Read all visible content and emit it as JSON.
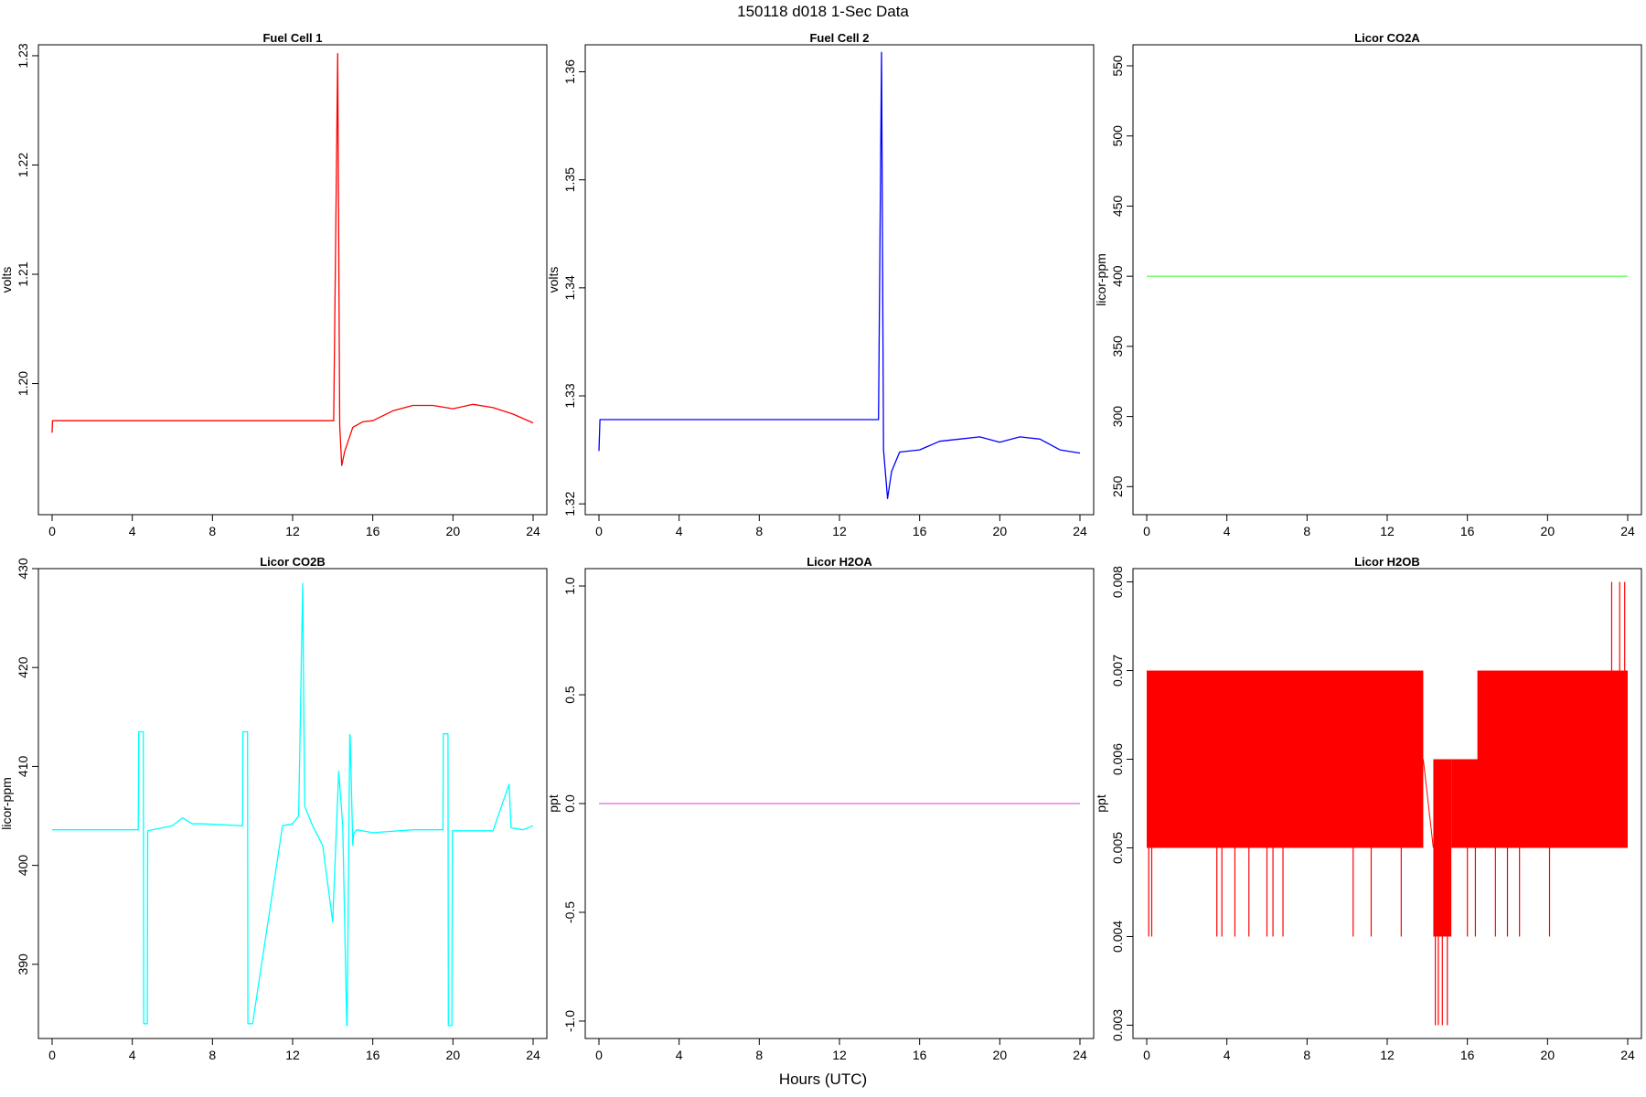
{
  "figure": {
    "title": "150118   d018   1-Sec Data",
    "xlabel": "Hours (UTC)"
  },
  "chart_data": [
    {
      "type": "line",
      "title": "Fuel Cell 1",
      "ylabel": "volts",
      "xlim": [
        0,
        24
      ],
      "ylim": [
        1.188,
        1.231
      ],
      "xticks": [
        0,
        4,
        8,
        12,
        16,
        20,
        24
      ],
      "yticks": [
        1.2,
        1.21,
        1.22,
        1.23
      ],
      "ytick_labels": [
        "1.20",
        "1.21",
        "1.22",
        "1.23"
      ],
      "series": [
        {
          "color": "#ff0000",
          "x": [
            0,
            0.02,
            13.8,
            14.05,
            14.25,
            14.35,
            14.45,
            14.6,
            15.0,
            15.5,
            16.0,
            17.0,
            18.0,
            19.0,
            20.0,
            21.0,
            22.0,
            23.0,
            24.0
          ],
          "y": [
            1.1955,
            1.1966,
            1.1966,
            1.1966,
            1.2302,
            1.1962,
            1.1925,
            1.1938,
            1.196,
            1.1965,
            1.1966,
            1.1975,
            1.198,
            1.198,
            1.1977,
            1.1981,
            1.1978,
            1.1972,
            1.1964
          ]
        }
      ]
    },
    {
      "type": "line",
      "title": "Fuel Cell 2",
      "ylabel": "volts",
      "xlim": [
        0,
        24
      ],
      "ylim": [
        1.319,
        1.3625
      ],
      "xticks": [
        0,
        4,
        8,
        12,
        16,
        20,
        24
      ],
      "yticks": [
        1.32,
        1.33,
        1.34,
        1.35,
        1.36
      ],
      "ytick_labels": [
        "1.32",
        "1.33",
        "1.34",
        "1.35",
        "1.36"
      ],
      "series": [
        {
          "color": "#0000ff",
          "x": [
            0,
            0.05,
            13.8,
            13.95,
            14.1,
            14.2,
            14.4,
            14.6,
            15.0,
            16.0,
            17.0,
            18.0,
            19.0,
            20.0,
            21.0,
            22.0,
            23.0,
            24.0
          ],
          "y": [
            1.3249,
            1.3278,
            1.3278,
            1.3278,
            1.3618,
            1.325,
            1.3205,
            1.323,
            1.3248,
            1.325,
            1.3258,
            1.326,
            1.3262,
            1.3257,
            1.3262,
            1.326,
            1.325,
            1.3247
          ]
        }
      ]
    },
    {
      "type": "line",
      "title": "Licor CO2A",
      "ylabel": "licor-ppm",
      "xlim": [
        0,
        24
      ],
      "ylim": [
        230,
        565
      ],
      "xticks": [
        0,
        4,
        8,
        12,
        16,
        20,
        24
      ],
      "yticks": [
        250,
        300,
        350,
        400,
        450,
        500,
        550
      ],
      "ytick_labels": [
        "250",
        "300",
        "350",
        "400",
        "450",
        "500",
        "550"
      ],
      "series": [
        {
          "color": "#66ff66",
          "x": [
            0,
            24
          ],
          "y": [
            400,
            400
          ]
        }
      ]
    },
    {
      "type": "line",
      "title": "Licor CO2B",
      "ylabel": "licor-ppm",
      "xlim": [
        0,
        24
      ],
      "ylim": [
        382.5,
        430
      ],
      "xticks": [
        0,
        4,
        8,
        12,
        16,
        20,
        24
      ],
      "yticks": [
        390,
        400,
        410,
        420,
        430
      ],
      "ytick_labels": [
        "390",
        "400",
        "410",
        "420",
        "430"
      ],
      "series": [
        {
          "color": "#00ffff",
          "x": [
            0,
            4.3,
            4.32,
            4.55,
            4.57,
            4.75,
            4.77,
            6.0,
            6.5,
            7.0,
            7.5,
            9.5,
            9.52,
            9.75,
            9.77,
            10.0,
            11.5,
            12.0,
            12.3,
            12.5,
            12.6,
            12.7,
            13.0,
            13.5,
            14.0,
            14.3,
            14.5,
            14.7,
            14.72,
            14.85,
            14.87,
            15.0,
            15.05,
            15.2,
            16.0,
            18.0,
            19.5,
            19.52,
            19.75,
            19.77,
            19.95,
            19.97,
            22.0,
            22.8,
            22.9,
            23.5,
            24.0
          ],
          "y": [
            403.6,
            403.6,
            413.5,
            413.5,
            384.0,
            384.0,
            403.5,
            404.0,
            404.8,
            404.2,
            404.2,
            404.0,
            413.5,
            413.5,
            384.0,
            384.0,
            404.0,
            404.2,
            405.0,
            428.5,
            406.0,
            405.5,
            404.0,
            402.0,
            394.3,
            409.5,
            404.0,
            383.8,
            383.8,
            413.2,
            413.2,
            402.0,
            403.2,
            403.6,
            403.3,
            403.6,
            403.6,
            413.3,
            413.3,
            383.8,
            383.8,
            403.5,
            403.5,
            408.2,
            403.8,
            403.6,
            404.0
          ]
        }
      ]
    },
    {
      "type": "line",
      "title": "Licor H2OA",
      "ylabel": "ppt",
      "xlim": [
        0,
        24
      ],
      "ylim": [
        -1.08,
        1.08
      ],
      "xticks": [
        0,
        4,
        8,
        12,
        16,
        20,
        24
      ],
      "yticks": [
        -1.0,
        -0.5,
        0.0,
        0.5,
        1.0
      ],
      "ytick_labels": [
        "-1.0",
        "-0.5",
        "0.0",
        "0.5",
        "1.0"
      ],
      "series": [
        {
          "color": "#dd66dd",
          "x": [
            0,
            24
          ],
          "y": [
            0,
            0
          ]
        }
      ]
    },
    {
      "type": "line",
      "title": "Licor H2OB",
      "ylabel": "ppt",
      "xlim": [
        0,
        24
      ],
      "ylim": [
        0.00285,
        0.00815
      ],
      "xticks": [
        0,
        4,
        8,
        12,
        16,
        20,
        24
      ],
      "yticks": [
        0.003,
        0.004,
        0.005,
        0.006,
        0.007,
        0.008
      ],
      "ytick_labels": [
        "0.003",
        "0.004",
        "0.005",
        "0.006",
        "0.007",
        "0.008"
      ],
      "series": [
        {
          "color": "#ff0000",
          "bands": [
            {
              "x": [
                0,
                13.8
              ],
              "y": [
                0.005,
                0.007
              ]
            },
            {
              "x": [
                14.3,
                15.2
              ],
              "y": [
                0.004,
                0.006
              ]
            },
            {
              "x": [
                15.2,
                24.0
              ],
              "y": [
                0.005,
                0.006
              ]
            },
            {
              "x": [
                16.5,
                24.0
              ],
              "y": [
                0.005,
                0.007
              ]
            }
          ],
          "spikes": [
            {
              "x": 0.1,
              "y": [
                0.004,
                0.005
              ]
            },
            {
              "x": 0.25,
              "y": [
                0.004,
                0.005
              ]
            },
            {
              "x": 3.5,
              "y": [
                0.004,
                0.005
              ]
            },
            {
              "x": 3.75,
              "y": [
                0.004,
                0.005
              ]
            },
            {
              "x": 4.4,
              "y": [
                0.004,
                0.005
              ]
            },
            {
              "x": 5.1,
              "y": [
                0.004,
                0.005
              ]
            },
            {
              "x": 6.0,
              "y": [
                0.004,
                0.005
              ]
            },
            {
              "x": 6.3,
              "y": [
                0.004,
                0.005
              ]
            },
            {
              "x": 6.8,
              "y": [
                0.004,
                0.005
              ]
            },
            {
              "x": 10.3,
              "y": [
                0.004,
                0.005
              ]
            },
            {
              "x": 11.2,
              "y": [
                0.004,
                0.005
              ]
            },
            {
              "x": 12.7,
              "y": [
                0.004,
                0.005
              ]
            },
            {
              "x": 14.4,
              "y": [
                0.003,
                0.004
              ]
            },
            {
              "x": 14.55,
              "y": [
                0.003,
                0.004
              ]
            },
            {
              "x": 14.75,
              "y": [
                0.003,
                0.004
              ]
            },
            {
              "x": 15.0,
              "y": [
                0.003,
                0.004
              ]
            },
            {
              "x": 16.0,
              "y": [
                0.004,
                0.005
              ]
            },
            {
              "x": 16.4,
              "y": [
                0.004,
                0.005
              ]
            },
            {
              "x": 17.4,
              "y": [
                0.004,
                0.005
              ]
            },
            {
              "x": 18.0,
              "y": [
                0.004,
                0.005
              ]
            },
            {
              "x": 18.6,
              "y": [
                0.004,
                0.005
              ]
            },
            {
              "x": 20.1,
              "y": [
                0.004,
                0.005
              ]
            },
            {
              "x": 23.2,
              "y": [
                0.007,
                0.008
              ]
            },
            {
              "x": 23.6,
              "y": [
                0.007,
                0.008
              ]
            },
            {
              "x": 23.85,
              "y": [
                0.007,
                0.008
              ]
            }
          ]
        }
      ]
    }
  ]
}
